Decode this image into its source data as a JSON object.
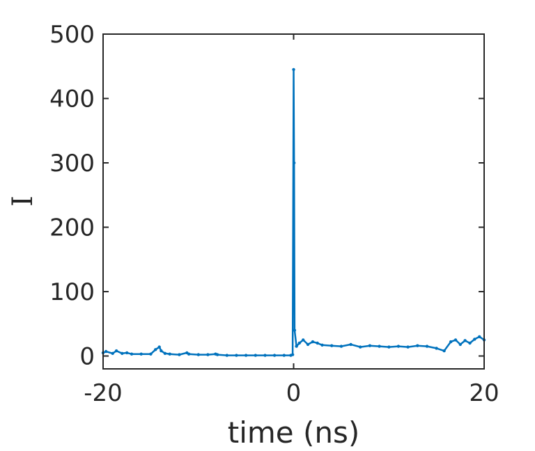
{
  "chart_data": {
    "type": "line",
    "title": "",
    "xlabel": "time (ns)",
    "ylabel": "I",
    "xlim": [
      -20,
      20
    ],
    "ylim": [
      -20,
      500
    ],
    "x_ticks": [
      "-20",
      "0",
      "20"
    ],
    "y_ticks": [
      "0",
      "100",
      "200",
      "300",
      "400",
      "500"
    ],
    "grid": false,
    "legend": "none",
    "series_color": "#0072BD",
    "series": [
      {
        "x": [
          -20,
          -19.7,
          -19,
          -18.6,
          -18,
          -17.5,
          -17,
          -16,
          -15,
          -14.5,
          -14.1,
          -13.9,
          -13.5,
          -13,
          -12,
          -11.2,
          -11,
          -10,
          -9,
          -8.2,
          -8,
          -7,
          -6,
          -5,
          -4,
          -3,
          -2,
          -1,
          -0.3,
          -0.1,
          0,
          0.05,
          0.1,
          0.3,
          0.6,
          1,
          1.5,
          2,
          2.5,
          3,
          4,
          5,
          6,
          7,
          8,
          9,
          10,
          11,
          12,
          13,
          14,
          15,
          15.8,
          16.5,
          17,
          17.5,
          18,
          18.5,
          19,
          19.5,
          20
        ],
        "y": [
          5,
          7,
          4,
          8,
          4,
          5,
          3,
          3,
          3,
          10,
          14,
          8,
          4,
          3,
          2,
          5,
          3,
          2,
          2,
          3,
          2,
          1,
          1,
          1,
          1,
          1,
          1,
          1,
          1,
          2,
          445,
          300,
          40,
          15,
          20,
          25,
          18,
          22,
          20,
          17,
          16,
          15,
          18,
          14,
          16,
          15,
          14,
          15,
          14,
          16,
          15,
          12,
          8,
          22,
          25,
          18,
          24,
          20,
          26,
          30,
          25
        ]
      }
    ]
  }
}
